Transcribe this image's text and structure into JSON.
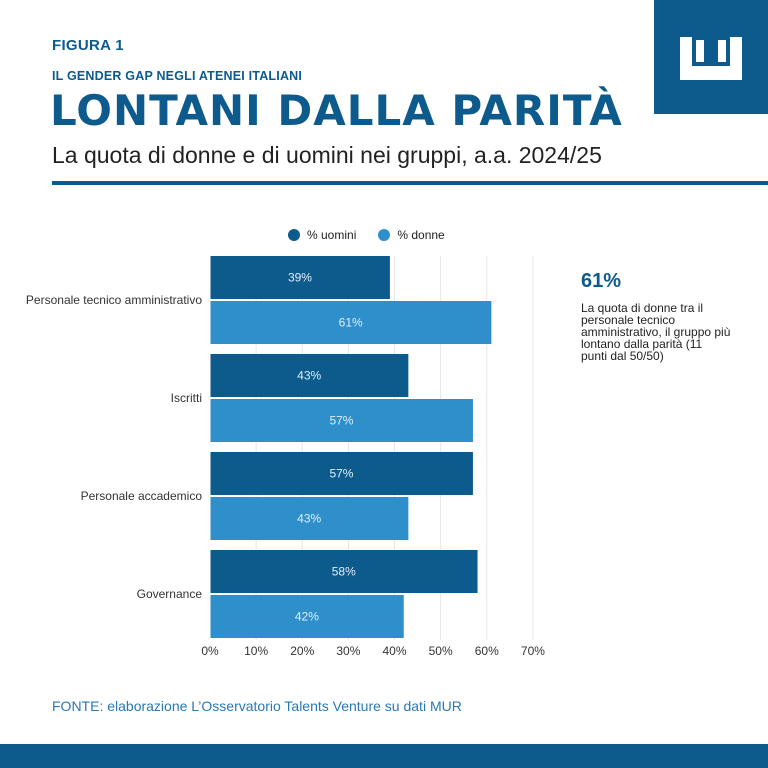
{
  "header": {
    "figure_label": "FIGURA 1",
    "kicker": "IL GENDER GAP NEGLI ATENEI ITALIANI",
    "title": "LONTANI DALLA PARITÀ",
    "subtitle": "La quota di donne e di uomini nei gruppi, a.a. 2024/25"
  },
  "callout": {
    "value": "61%",
    "text": "La quota di donne tra il personale tecnico amministrativo, il gruppo più lontano dalla parità (11 punti dal 50/50)"
  },
  "source": "FONTE: elaborazione L’Osservatorio Talents Venture su dati MUR",
  "colors": {
    "brand": "#0d5a8c",
    "uomini": "#0d5a8c",
    "donne": "#2f8fcb",
    "grid": "#e6e6e6"
  },
  "logo_icon": "crown-monogram-icon",
  "chart_data": {
    "type": "bar",
    "orientation": "horizontal",
    "categories": [
      "Personale tecnico amministrativo",
      "Iscritti",
      "Personale accademico",
      "Governance"
    ],
    "series": [
      {
        "name": "% uomini",
        "values": [
          39,
          43,
          57,
          58
        ],
        "labels": [
          "39%",
          "43%",
          "57%",
          "58%"
        ]
      },
      {
        "name": "% donne",
        "values": [
          61,
          57,
          43,
          42
        ],
        "labels": [
          "61%",
          "57%",
          "43%",
          "42%"
        ]
      }
    ],
    "x_ticks": [
      "0%",
      "10%",
      "20%",
      "30%",
      "40%",
      "50%",
      "60%",
      "70%"
    ],
    "xlim": [
      0,
      70
    ],
    "legend": "top",
    "grid": true
  }
}
